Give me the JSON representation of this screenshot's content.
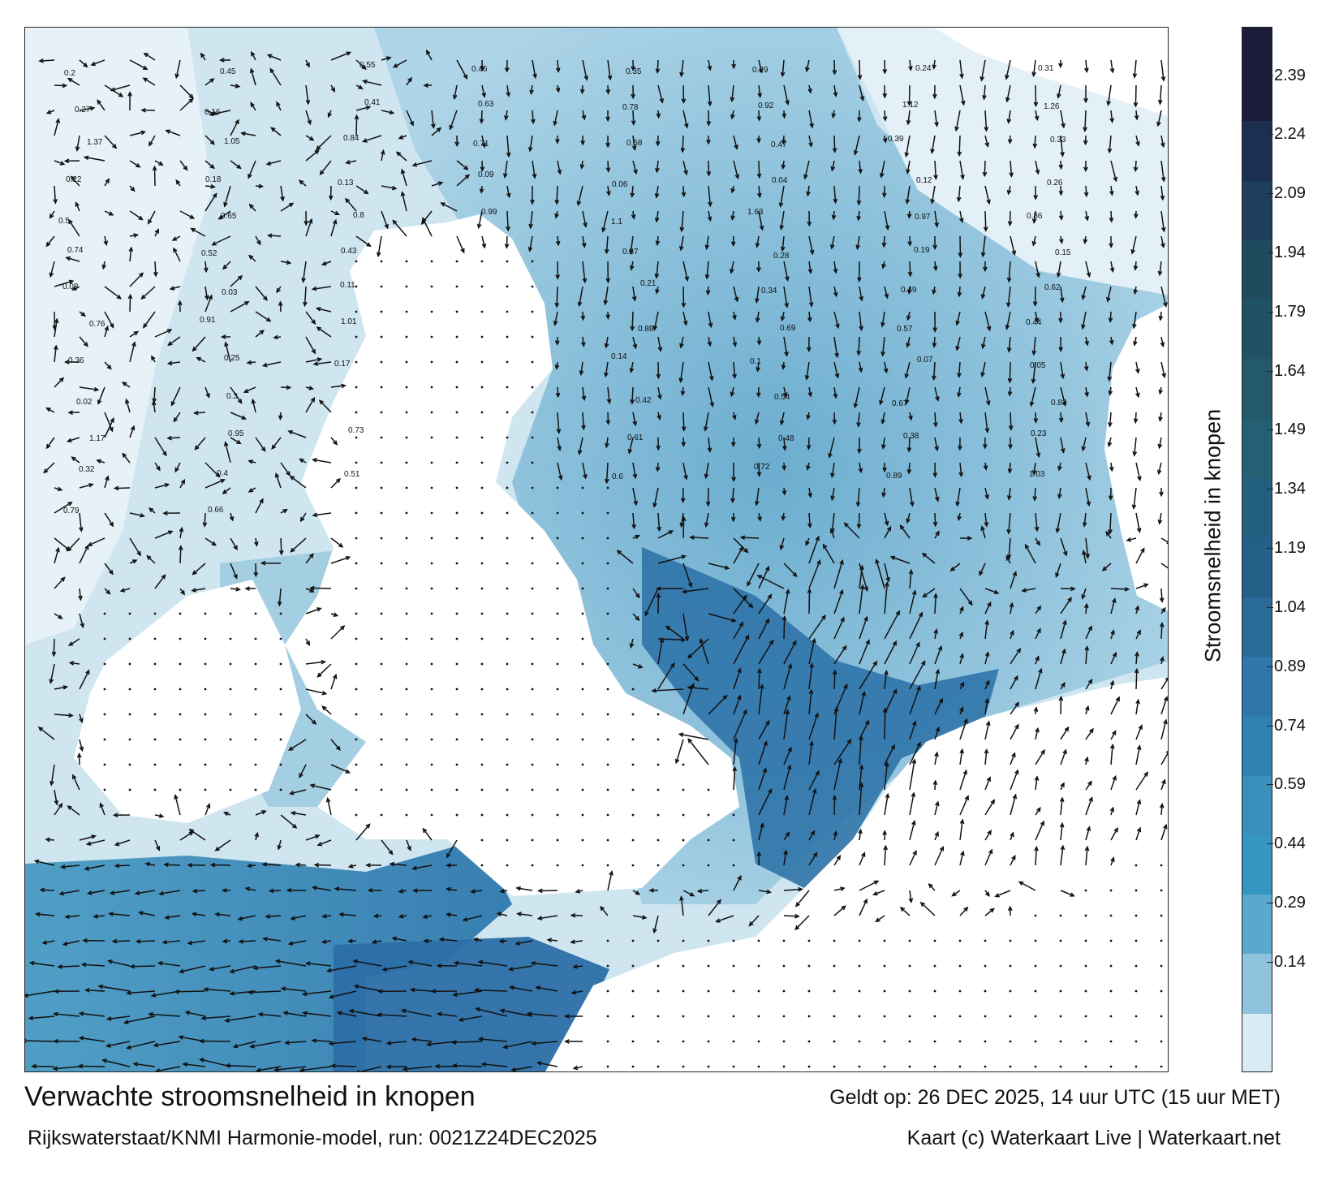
{
  "map": {
    "colors": {
      "land": "#ffffff",
      "sea_light": "#cfe6f1",
      "sea_mid": "#4f9fc6",
      "sea_dark": "#2c6fa6",
      "arrow": "#111111"
    },
    "arrow_labels": [
      "0.2",
      "0.45",
      "0.55",
      "0.46",
      "0.35",
      "0.29",
      "0.24",
      "0.31",
      "0.27",
      "0.16",
      "0.41",
      "0.63",
      "0.78",
      "0.92",
      "1.12",
      "1.26",
      "1.37",
      "1.05",
      "0.84",
      "0.71",
      "0.58",
      "0.47",
      "0.39",
      "0.33",
      "0.22",
      "0.18",
      "0.13",
      "0.09",
      "0.06",
      "0.04",
      "0.12",
      "0.26",
      "0.5",
      "0.65",
      "0.8",
      "0.99",
      "1.1",
      "1.63",
      "0.97",
      "0.86",
      "0.74",
      "0.52",
      "0.43",
      "0.37",
      "0.28",
      "0.19",
      "0.15",
      "0.08",
      "0.03",
      "0.11",
      "0.21",
      "0.34",
      "0.49",
      "0.62",
      "0.76",
      "0.91",
      "1.01",
      "0.88",
      "0.69",
      "0.57",
      "0.44",
      "0.36",
      "0.25",
      "0.17",
      "0.14",
      "0.1",
      "0.07",
      "0.05",
      "0.02",
      "0.3",
      "0.42",
      "0.54",
      "0.67",
      "0.83",
      "1.17",
      "0.95",
      "0.73",
      "0.61",
      "0.48",
      "0.38",
      "0.23",
      "0.32",
      "0.4",
      "0.51",
      "0.6",
      "0.72",
      "0.89",
      "1.03",
      "0.79",
      "0.66"
    ]
  },
  "colorbar": {
    "label": "Stroomsnelheid in knopen",
    "ticks": [
      "2.39",
      "2.24",
      "2.09",
      "1.94",
      "1.79",
      "1.64",
      "1.49",
      "1.34",
      "1.19",
      "1.04",
      "0.89",
      "0.74",
      "0.59",
      "0.44",
      "0.29",
      "0.14"
    ],
    "colors": [
      "#1b1b3a",
      "#1d2f50",
      "#1e3f5c",
      "#204a5e",
      "#205266",
      "#24586b",
      "#255f73",
      "#22607f",
      "#245f88",
      "#2a6a99",
      "#2f77a8",
      "#2f82b0",
      "#3a8fbb",
      "#3596bf",
      "#5aa8cc",
      "#8fc3dd",
      "#d9ecf5"
    ]
  },
  "footer": {
    "title": "Verwachte stroomsnelheid in knopen",
    "valid": "Geldt op: 26 DEC 2025, 14 uur UTC (15 uur MET)",
    "model": "Rijkswaterstaat/KNMI Harmonie-model, run: 0021Z24DEC2025",
    "credit": "Kaart (c) Waterkaart Live | Waterkaart.net"
  }
}
